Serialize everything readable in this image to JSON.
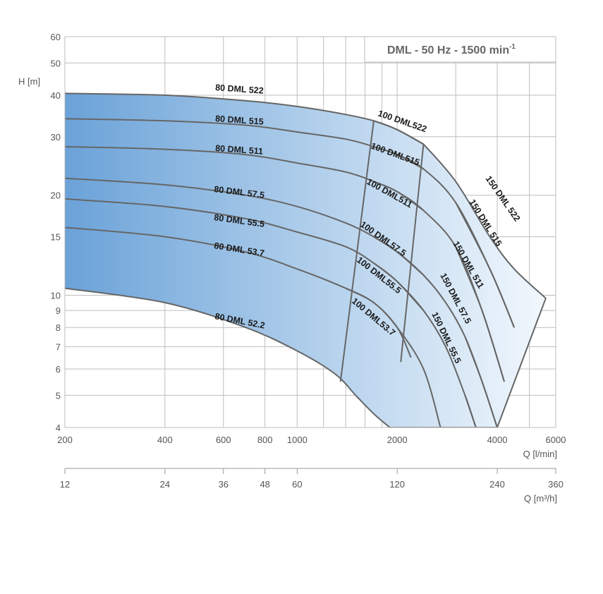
{
  "chart_data": {
    "type": "line",
    "title": "DML - 50 Hz - 1500 min",
    "title_superscript": "-1",
    "xlabel": "Q [l/min]",
    "ylabel": "H [m]",
    "x2label": "Q [m³/h]",
    "x_scale": "log",
    "y_scale": "log",
    "xlim": [
      200,
      6000
    ],
    "ylim": [
      4,
      60
    ],
    "grid": true,
    "x_ticks": [
      "200",
      "400",
      "600",
      "800",
      "1000",
      "2000",
      "4000",
      "6000"
    ],
    "x_tick_values": [
      200,
      400,
      600,
      800,
      1000,
      2000,
      4000,
      6000
    ],
    "x_minor_gridlines": [
      1200,
      1400,
      1600,
      1800,
      3000,
      5000
    ],
    "x2_ticks": [
      "12",
      "24",
      "36",
      "48",
      "60",
      "120",
      "240",
      "360"
    ],
    "x2_tick_values": [
      12,
      24,
      36,
      48,
      60,
      120,
      240,
      360
    ],
    "y_ticks": [
      "4",
      "5",
      "6",
      "7",
      "8",
      "9",
      "10",
      "15",
      "20",
      "30",
      "40",
      "50",
      "60"
    ],
    "y_tick_values": [
      4,
      5,
      6,
      7,
      8,
      9,
      10,
      15,
      20,
      30,
      40,
      50,
      60
    ],
    "colors": {
      "fill_left": "#6aa2d8",
      "fill_right": "#f2f8fd",
      "curve": "#666666",
      "grid": "#bdbdbd"
    },
    "series": [
      {
        "name": "80 DML 522",
        "x": [
          200,
          400,
          700,
          1000,
          1400,
          1700,
          2000,
          2400
        ],
        "y": [
          40.5,
          40,
          38.5,
          37,
          35,
          33.5,
          31.5,
          28.5
        ]
      },
      {
        "name": "80 DML 515",
        "x": [
          200,
          400,
          700,
          1000,
          1400,
          1700,
          2000,
          2400,
          3000,
          3800,
          4500
        ],
        "y": [
          34,
          33.5,
          32.5,
          31,
          29.5,
          28,
          26.5,
          24,
          19,
          12,
          8
        ]
      },
      {
        "name": "80 DML 511",
        "x": [
          200,
          400,
          700,
          1000,
          1400,
          1700,
          2000,
          2400,
          3000,
          3600,
          4200
        ],
        "y": [
          28,
          27.5,
          26.5,
          25,
          23.5,
          22,
          20.5,
          18,
          14,
          9,
          5.5
        ]
      },
      {
        "name": "80 DML 57.5",
        "x": [
          200,
          400,
          700,
          1000,
          1400,
          1700,
          2000,
          2400,
          2800,
          3200,
          3600,
          4000
        ],
        "y": [
          22.5,
          21.5,
          20,
          18.5,
          16.5,
          15,
          13.5,
          11.5,
          9.5,
          7.5,
          5.5,
          4
        ]
      },
      {
        "name": "80 DML 55.5",
        "x": [
          200,
          400,
          700,
          1000,
          1400,
          1700,
          2000,
          2400,
          2800,
          3200,
          3450
        ],
        "y": [
          19.5,
          18.5,
          17,
          15.5,
          14,
          12.5,
          11,
          9,
          7,
          5,
          4
        ]
      },
      {
        "name": "80 DML 53.7",
        "x": [
          200,
          400,
          700,
          1000,
          1400,
          1700,
          2000,
          2400,
          2700
        ],
        "y": [
          16,
          15,
          13.5,
          12,
          10.5,
          9.5,
          8,
          6,
          4
        ]
      },
      {
        "name": "80 DML 52.2",
        "x": [
          200,
          400,
          700,
          1000,
          1300,
          1500,
          1700,
          1900
        ],
        "y": [
          10.5,
          9.5,
          8,
          6.8,
          5.8,
          5,
          4.4,
          4
        ]
      },
      {
        "name": "100 DML 522",
        "x": [
          1700,
          2000,
          2400
        ],
        "y": [
          33.5,
          31.5,
          28.5
        ]
      },
      {
        "name": "100 DML 515",
        "x": [
          1700,
          2000,
          2400
        ],
        "y": [
          28,
          26.5,
          24
        ]
      },
      {
        "name": "100 DML 511",
        "x": [
          1700,
          2000,
          2400
        ],
        "y": [
          22,
          20.5,
          18
        ]
      },
      {
        "name": "100 DML 57.5",
        "x": [
          1700,
          2000,
          2400
        ],
        "y": [
          15,
          13.5,
          11.5
        ]
      },
      {
        "name": "100 DML 55.5",
        "x": [
          1700,
          2000,
          2400
        ],
        "y": [
          12.5,
          11,
          9
        ]
      },
      {
        "name": "100 DML 53.7",
        "x": [
          1400,
          1700,
          2000,
          2200
        ],
        "y": [
          10.5,
          9.5,
          8,
          6.5
        ]
      },
      {
        "name": "150 DML 522",
        "x": [
          2400,
          3000,
          3800,
          4500,
          5600
        ],
        "y": [
          28.5,
          22,
          15,
          12,
          9.8
        ]
      },
      {
        "name": "150 DML 515",
        "x": [
          3000,
          3800,
          4500
        ],
        "y": [
          19,
          12,
          8
        ]
      },
      {
        "name": "150 DML 511",
        "x": [
          3000,
          3600,
          4200
        ],
        "y": [
          14,
          9,
          5.5
        ]
      },
      {
        "name": "150 DML 57.5",
        "x": [
          3200,
          3600,
          4000
        ],
        "y": [
          7.5,
          5.5,
          4
        ]
      },
      {
        "name": "150 DML 55.5",
        "x": [
          3200,
          3450
        ],
        "y": [
          5,
          4
        ]
      }
    ],
    "boundaries": [
      {
        "x": [
          1700,
          1350
        ],
        "y": [
          33.5,
          5.5
        ]
      },
      {
        "x": [
          2400,
          2050
        ],
        "y": [
          28.5,
          6.3
        ]
      },
      {
        "x": [
          5600,
          4000
        ],
        "y": [
          9.8,
          4
        ]
      }
    ],
    "labels": [
      {
        "text": "80 DML 522"
      },
      {
        "text": "80 DML 515"
      },
      {
        "text": "80 DML 511"
      },
      {
        "text": "80 DML 57.5"
      },
      {
        "text": "80 DML 55.5"
      },
      {
        "text": "80 DML 53.7"
      },
      {
        "text": "80 DML 52.2"
      },
      {
        "text": "100 DML522"
      },
      {
        "text": "100 DML515"
      },
      {
        "text": "100 DML511"
      },
      {
        "text": "100 DML57.5"
      },
      {
        "text": "100 DML55.5"
      },
      {
        "text": "100 DML53.7"
      },
      {
        "text": "150 DML 522"
      },
      {
        "text": "150 DML 515"
      },
      {
        "text": "150 DML 511"
      },
      {
        "text": "150 DML 57.5"
      },
      {
        "text": "150 DML 55.5"
      }
    ]
  }
}
